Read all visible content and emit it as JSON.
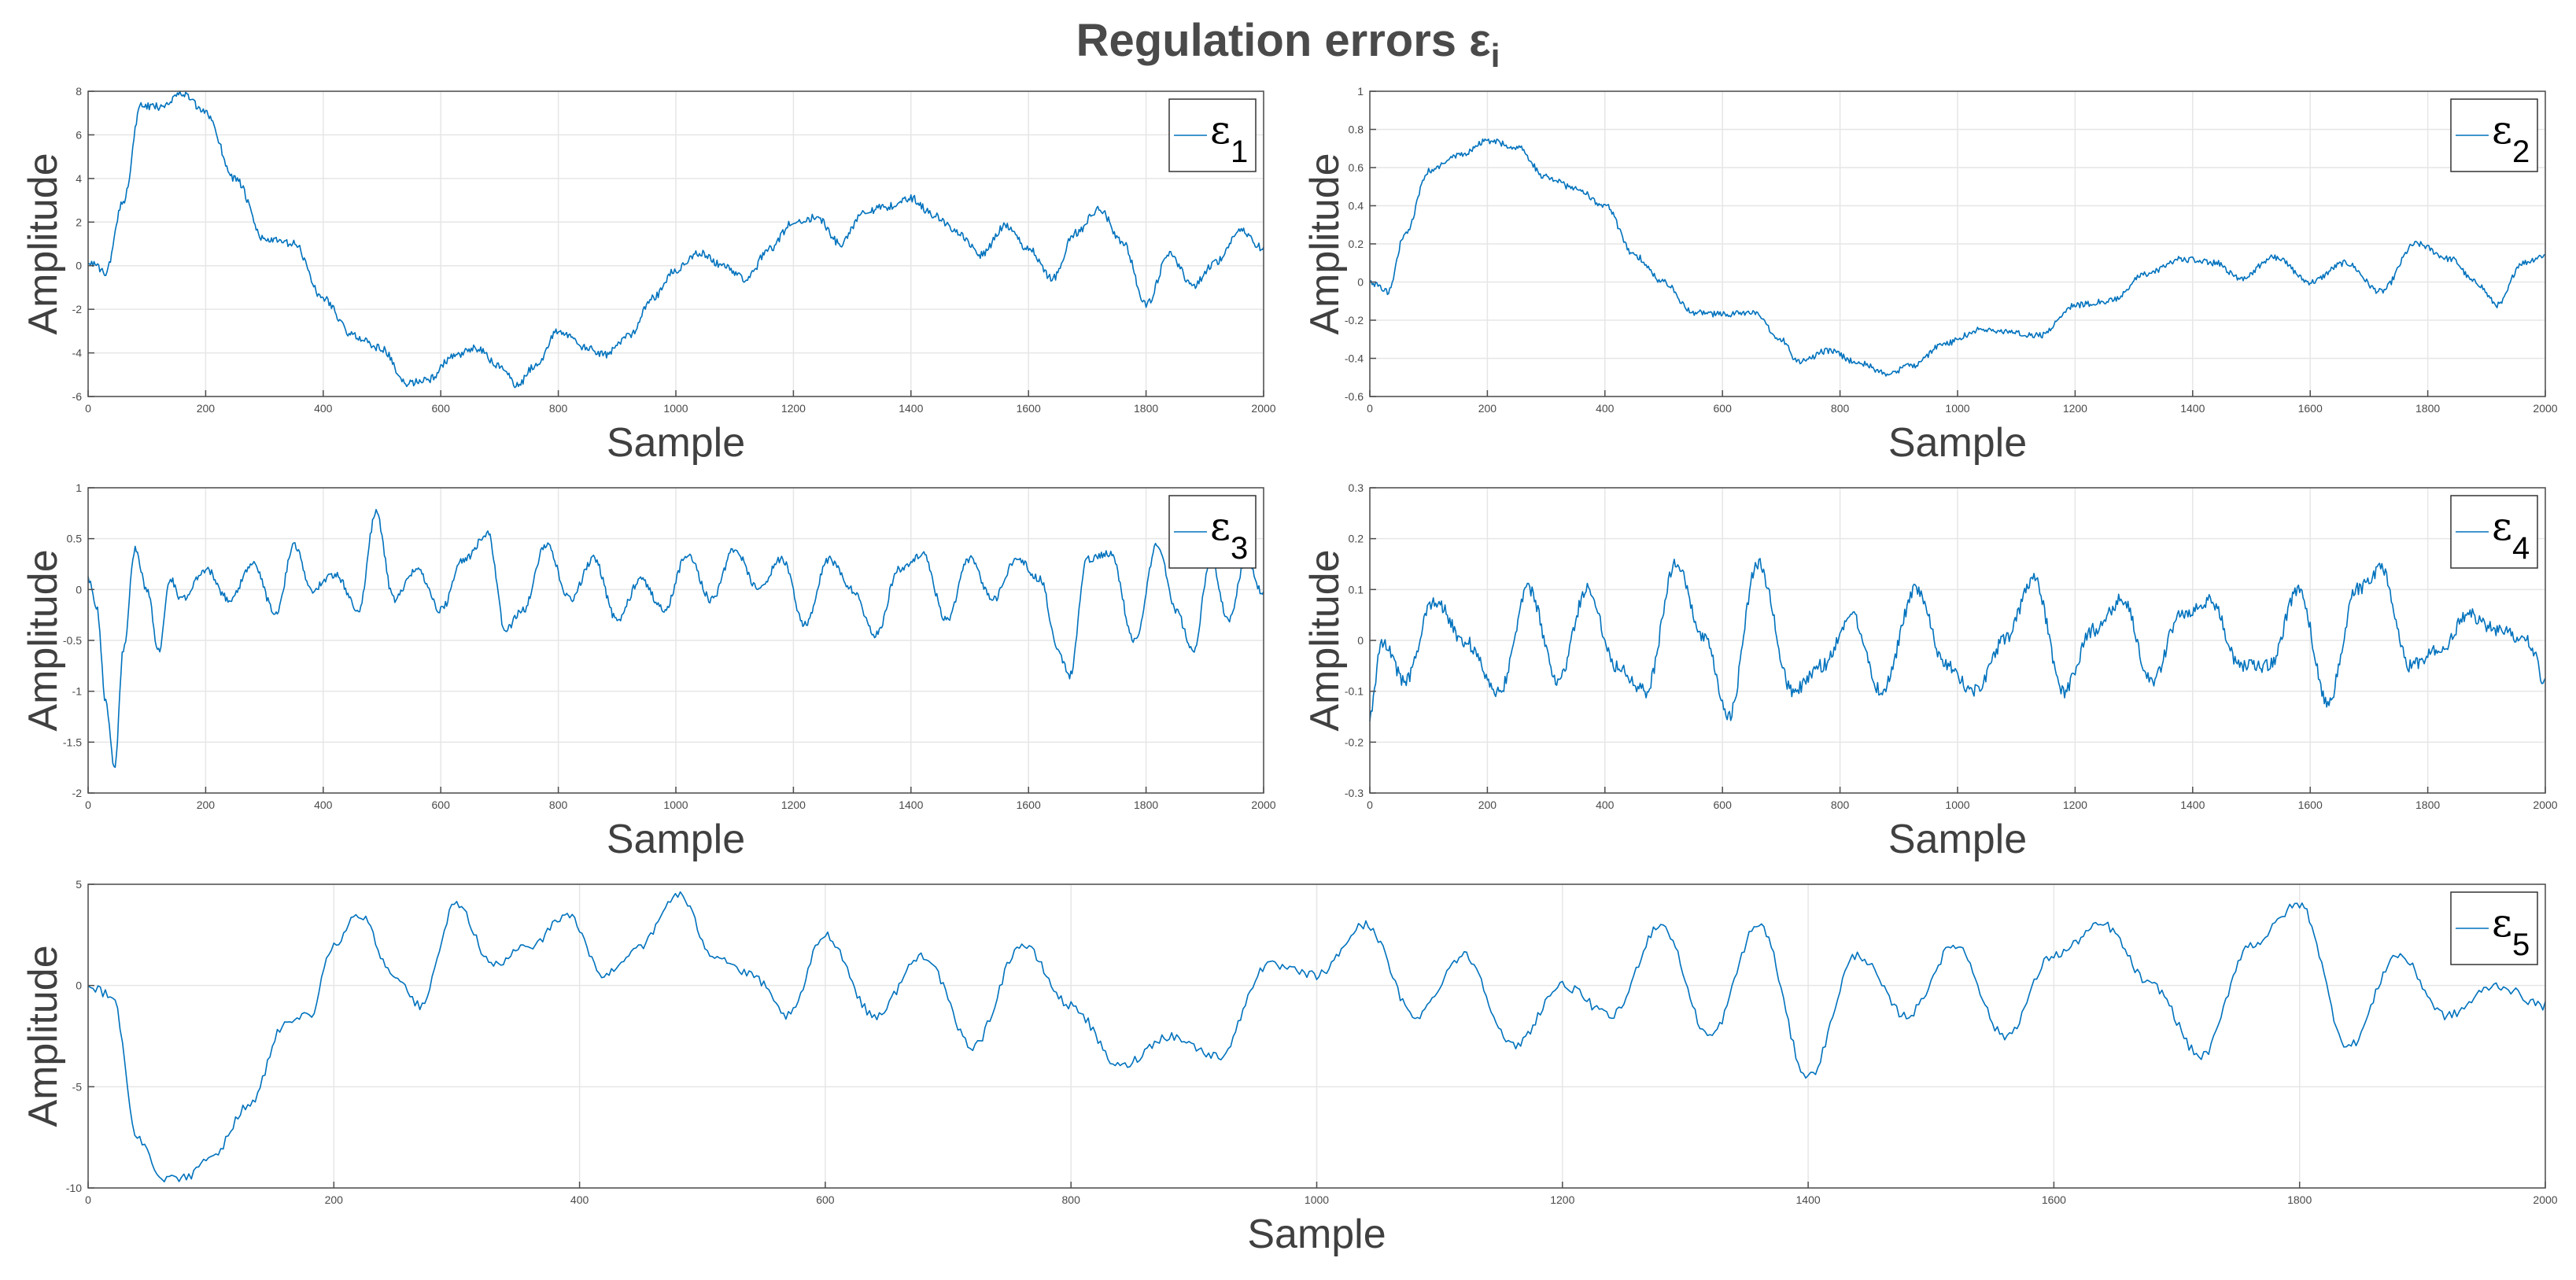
{
  "title": {
    "main": "Regulation errors ε",
    "subscript": "i"
  },
  "colors": {
    "line": "#0072BD",
    "grid": "#e6e6e6",
    "axes": "#4d4d4d",
    "text": "#404040"
  },
  "chart_data": [
    {
      "type": "line",
      "xlabel": "Sample",
      "ylabel": "Amplitude",
      "xlim": [
        0,
        2000
      ],
      "ylim": [
        -6,
        8
      ],
      "xticks": [
        0,
        200,
        400,
        600,
        800,
        1000,
        1200,
        1400,
        1600,
        1800,
        2000
      ],
      "yticks": [
        -6,
        -4,
        -2,
        0,
        2,
        4,
        6,
        8
      ],
      "legend": {
        "symbol": "ε",
        "sub": "1",
        "location": "top-right"
      },
      "grid": true,
      "noise": 0.05,
      "x": [
        0,
        30,
        60,
        90,
        120,
        160,
        200,
        250,
        300,
        350,
        400,
        450,
        500,
        540,
        580,
        620,
        660,
        700,
        730,
        760,
        800,
        850,
        880,
        920,
        960,
        1000,
        1040,
        1080,
        1120,
        1160,
        1200,
        1240,
        1280,
        1320,
        1360,
        1400,
        1440,
        1480,
        1520,
        1560,
        1600,
        1640,
        1680,
        1720,
        1760,
        1800,
        1840,
        1880,
        1920,
        1960,
        2000
      ],
      "y": [
        0.2,
        -0.3,
        3.0,
        7.3,
        7.3,
        7.9,
        7.0,
        4.0,
        1.2,
        1.0,
        -1.5,
        -3.2,
        -3.8,
        -5.4,
        -5.2,
        -4.2,
        -3.8,
        -4.6,
        -5.5,
        -4.6,
        -3.0,
        -3.8,
        -4.1,
        -3.2,
        -1.5,
        -0.2,
        0.6,
        0.0,
        -0.6,
        0.8,
        2.0,
        2.2,
        1.0,
        2.5,
        2.7,
        3.1,
        2.3,
        1.5,
        0.5,
        1.8,
        0.8,
        -0.6,
        1.5,
        2.6,
        1.1,
        -1.8,
        0.5,
        -0.9,
        0.2,
        1.6,
        0.8
      ]
    },
    {
      "type": "line",
      "xlabel": "Sample",
      "ylabel": "Amplitude",
      "xlim": [
        0,
        2000
      ],
      "ylim": [
        -0.6,
        1
      ],
      "xticks": [
        0,
        200,
        400,
        600,
        800,
        1000,
        1200,
        1400,
        1600,
        1800,
        2000
      ],
      "yticks": [
        -0.6,
        -0.4,
        -0.2,
        0,
        0.2,
        0.4,
        0.6,
        0.8,
        1
      ],
      "legend": {
        "symbol": "ε",
        "sub": "2",
        "location": "top-right"
      },
      "grid": true,
      "noise": 0.04,
      "x": [
        0,
        30,
        60,
        100,
        150,
        200,
        250,
        300,
        350,
        400,
        450,
        500,
        550,
        600,
        650,
        700,
        730,
        780,
        830,
        880,
        920,
        980,
        1040,
        1080,
        1140,
        1200,
        1260,
        1320,
        1380,
        1440,
        1480,
        1540,
        1600,
        1660,
        1720,
        1780,
        1840,
        1880,
        1920,
        1960,
        2000
      ],
      "y": [
        0.0,
        -0.05,
        0.25,
        0.58,
        0.66,
        0.74,
        0.71,
        0.55,
        0.49,
        0.4,
        0.14,
        0.0,
        -0.16,
        -0.17,
        -0.16,
        -0.3,
        -0.42,
        -0.36,
        -0.42,
        -0.48,
        -0.44,
        -0.32,
        -0.25,
        -0.26,
        -0.28,
        -0.12,
        -0.1,
        0.04,
        0.12,
        0.1,
        0.02,
        0.13,
        0.0,
        0.1,
        -0.05,
        0.2,
        0.12,
        0.0,
        -0.12,
        0.1,
        0.14
      ]
    },
    {
      "type": "line",
      "xlabel": "Sample",
      "ylabel": "Amplitude",
      "xlim": [
        0,
        2000
      ],
      "ylim": [
        -2,
        1
      ],
      "xticks": [
        0,
        200,
        400,
        600,
        800,
        1000,
        1200,
        1400,
        1600,
        1800,
        2000
      ],
      "yticks": [
        -2,
        -1.5,
        -1,
        -0.5,
        0,
        0.5,
        1
      ],
      "legend": {
        "symbol": "ε",
        "sub": "3",
        "location": "top-right"
      },
      "grid": true,
      "noise": 0.05,
      "x": [
        0,
        15,
        30,
        45,
        60,
        80,
        100,
        120,
        140,
        160,
        200,
        240,
        280,
        320,
        350,
        380,
        420,
        460,
        490,
        520,
        560,
        600,
        640,
        680,
        710,
        740,
        780,
        820,
        860,
        900,
        940,
        980,
        1020,
        1060,
        1100,
        1140,
        1180,
        1220,
        1260,
        1300,
        1340,
        1380,
        1420,
        1460,
        1500,
        1540,
        1580,
        1620,
        1650,
        1670,
        1700,
        1740,
        1780,
        1820,
        1850,
        1880,
        1910,
        1940,
        1970,
        2000
      ],
      "y": [
        0.1,
        -0.2,
        -1.1,
        -1.75,
        -0.6,
        0.4,
        0.0,
        -0.6,
        0.1,
        -0.1,
        0.2,
        -0.1,
        0.25,
        -0.25,
        0.45,
        0.0,
        0.15,
        -0.2,
        0.75,
        -0.1,
        0.2,
        -0.2,
        0.3,
        0.55,
        -0.4,
        -0.2,
        0.45,
        -0.1,
        0.3,
        -0.3,
        0.1,
        -0.2,
        0.35,
        -0.1,
        0.4,
        0.0,
        0.3,
        -0.35,
        0.3,
        0.0,
        -0.45,
        0.2,
        0.35,
        -0.3,
        0.3,
        -0.1,
        0.3,
        0.1,
        -0.6,
        -0.85,
        0.3,
        0.35,
        -0.5,
        0.45,
        -0.2,
        -0.6,
        0.3,
        -0.3,
        0.3,
        -0.05
      ]
    },
    {
      "type": "line",
      "xlabel": "Sample",
      "ylabel": "Amplitude",
      "xlim": [
        0,
        2000
      ],
      "ylim": [
        -0.3,
        0.3
      ],
      "xticks": [
        0,
        200,
        400,
        600,
        800,
        1000,
        1200,
        1400,
        1600,
        1800,
        2000
      ],
      "yticks": [
        -0.3,
        -0.2,
        -0.1,
        0,
        0.1,
        0.2,
        0.3
      ],
      "legend": {
        "symbol": "ε",
        "sub": "4",
        "location": "top-right"
      },
      "grid": true,
      "noise": 0.09,
      "x": [
        0,
        20,
        60,
        110,
        160,
        220,
        270,
        320,
        370,
        420,
        470,
        520,
        570,
        610,
        660,
        720,
        770,
        820,
        870,
        930,
        980,
        1030,
        1080,
        1130,
        1180,
        1230,
        1280,
        1330,
        1380,
        1430,
        1480,
        1530,
        1580,
        1630,
        1680,
        1720,
        1770,
        1820,
        1870,
        1920,
        1970,
        2000
      ],
      "y": [
        -0.15,
        0.0,
        -0.08,
        0.08,
        0.0,
        -0.1,
        0.1,
        -0.08,
        0.1,
        -0.05,
        -0.1,
        0.15,
        0.0,
        -0.15,
        0.15,
        -0.1,
        -0.05,
        0.05,
        -0.1,
        0.1,
        -0.05,
        -0.1,
        0.0,
        0.12,
        -0.1,
        0.02,
        0.08,
        -0.08,
        0.05,
        0.08,
        -0.05,
        -0.05,
        0.1,
        -0.12,
        0.1,
        0.14,
        -0.05,
        -0.02,
        0.05,
        0.02,
        0.0,
        -0.08
      ]
    },
    {
      "type": "line",
      "xlabel": "Sample",
      "ylabel": "Amplitude",
      "xlim": [
        0,
        2000
      ],
      "ylim": [
        -10,
        5
      ],
      "xticks": [
        0,
        200,
        400,
        600,
        800,
        1000,
        1200,
        1400,
        1600,
        1800,
        2000
      ],
      "yticks": [
        -10,
        -5,
        0,
        5
      ],
      "legend": {
        "symbol": "ε",
        "sub": "5",
        "location": "top-right"
      },
      "grid": true,
      "noise": 0.06,
      "x": [
        0,
        20,
        40,
        60,
        80,
        100,
        130,
        160,
        180,
        200,
        220,
        250,
        270,
        300,
        330,
        360,
        390,
        420,
        450,
        480,
        510,
        540,
        570,
        600,
        640,
        680,
        720,
        760,
        800,
        840,
        880,
        920,
        960,
        1000,
        1040,
        1080,
        1120,
        1160,
        1200,
        1240,
        1280,
        1320,
        1360,
        1400,
        1440,
        1480,
        1520,
        1560,
        1600,
        1640,
        1680,
        1720,
        1760,
        1800,
        1840,
        1880,
        1920,
        1960,
        2000
      ],
      "y": [
        0.0,
        -0.5,
        -7.5,
        -9.5,
        -9.5,
        -8.5,
        -6.0,
        -2.0,
        -1.5,
        2.0,
        3.5,
        0.5,
        -1.0,
        4.0,
        1.0,
        2.0,
        3.5,
        0.5,
        2.0,
        4.5,
        1.5,
        0.5,
        -1.5,
        2.5,
        -1.5,
        1.5,
        -3.0,
        2.0,
        -1.0,
        -4.0,
        -2.5,
        -3.5,
        1.0,
        0.5,
        3.0,
        -1.5,
        1.5,
        -3.0,
        0.0,
        -1.5,
        3.0,
        -2.5,
        3.0,
        -4.5,
        1.5,
        -1.5,
        2.0,
        -2.5,
        1.5,
        3.0,
        0.0,
        -3.5,
        2.0,
        4.0,
        -3.0,
        1.5,
        -1.5,
        0.0,
        -1.0
      ]
    }
  ]
}
